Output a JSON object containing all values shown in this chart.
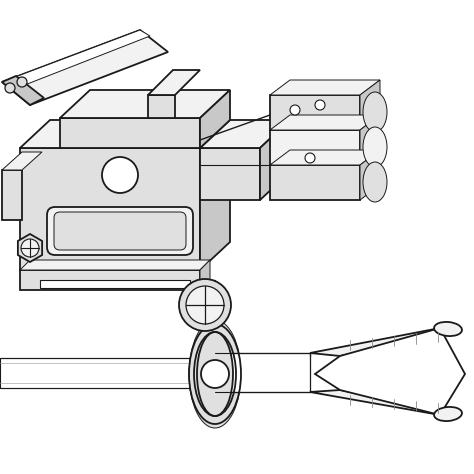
{
  "background_color": "#ffffff",
  "line_color": "#1a1a1a",
  "fig_width": 4.74,
  "fig_height": 4.74,
  "dpi": 100,
  "lw_main": 1.3,
  "lw_thin": 0.7,
  "fc_light": "#f2f2f2",
  "fc_mid": "#e0e0e0",
  "fc_dark": "#c8c8c8",
  "fc_white": "#ffffff"
}
